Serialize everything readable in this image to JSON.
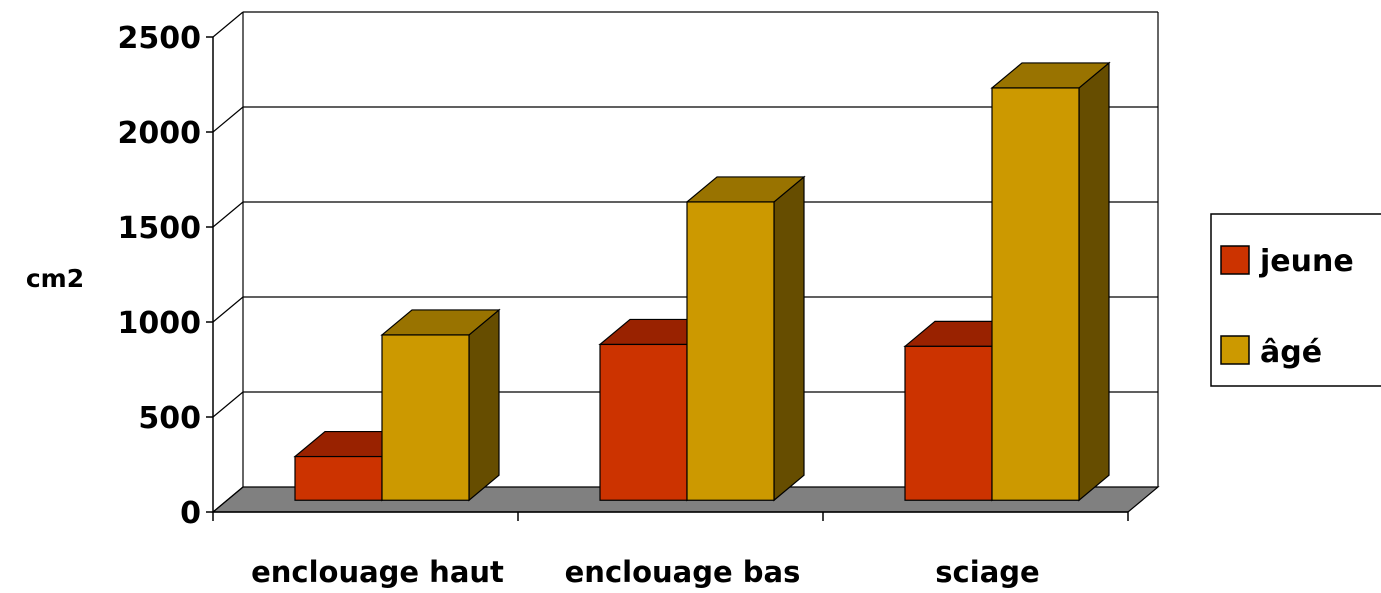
{
  "chart_data": {
    "type": "bar",
    "title": "",
    "xlabel": "",
    "ylabel": "cm2",
    "categories": [
      "enclouage haut",
      "enclouage bas",
      "sciage"
    ],
    "series": [
      {
        "name": "jeune",
        "values": [
          230,
          820,
          810
        ]
      },
      {
        "name": "âgé",
        "values": [
          870,
          1570,
          2170
        ]
      }
    ],
    "ylim": [
      0,
      2500
    ],
    "yticks": [
      0,
      500,
      1000,
      1500,
      2000,
      2500
    ],
    "grid": true,
    "legend": "right",
    "style": "3d",
    "colors": {
      "jeune_front": "#CC3300",
      "jeune_top": "#992200",
      "jeune_side": "#7A1B00",
      "age_front": "#CC9900",
      "age_top": "#997300",
      "age_side": "#664D00",
      "floor": "#808080"
    }
  }
}
